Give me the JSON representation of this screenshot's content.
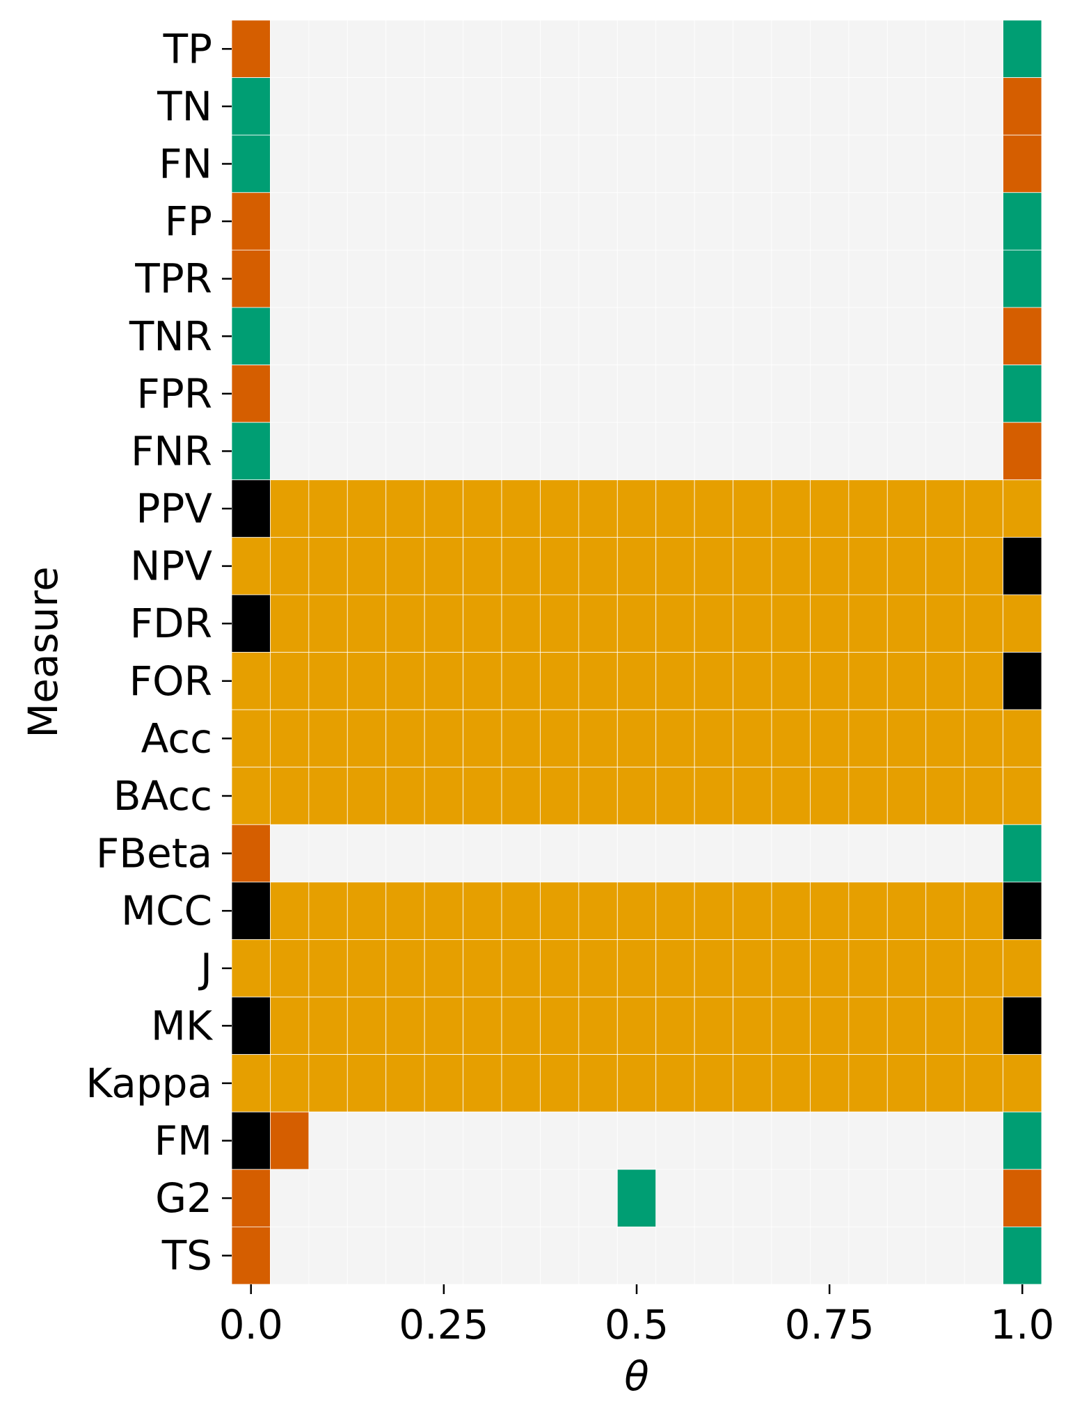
{
  "chart_data": {
    "type": "heatmap",
    "title": "",
    "xlabel": "θ",
    "ylabel": "Measure",
    "xlim": [
      0.0,
      1.0
    ],
    "x_ticks": [
      "0.0",
      "0.25",
      "0.5",
      "0.75",
      "1.0"
    ],
    "x_tick_values": [
      0.0,
      0.25,
      0.5,
      0.75,
      1.0
    ],
    "n_columns": 21,
    "x_values": [
      0.0,
      0.05,
      0.1,
      0.15,
      0.2,
      0.25,
      0.3,
      0.35,
      0.4,
      0.45,
      0.5,
      0.55,
      0.6,
      0.65,
      0.7,
      0.75,
      0.8,
      0.85,
      0.9,
      0.95,
      1.0
    ],
    "rows": [
      "TP",
      "TN",
      "FN",
      "FP",
      "TPR",
      "TNR",
      "FPR",
      "FNR",
      "PPV",
      "NPV",
      "FDR",
      "FOR",
      "Acc",
      "BAcc",
      "FBeta",
      "MCC",
      "J",
      "MK",
      "Kappa",
      "FM",
      "G2",
      "TS"
    ],
    "colors": {
      "E": "#f4f4f4",
      "O": "#d55e00",
      "G": "#009e73",
      "Y": "#e69f00",
      "K": "#000000"
    },
    "grid": false,
    "legend": "none",
    "cells": [
      "OEEEEEEEEEEEEEEEEEEEG",
      "GEEEEEEEEEEEEEEEEEEEO",
      "GEEEEEEEEEEEEEEEEEEEO",
      "OEEEEEEEEEEEEEEEEEEEG",
      "OEEEEEEEEEEEEEEEEEEEG",
      "GEEEEEEEEEEEEEEEEEEEO",
      "OEEEEEEEEEEEEEEEEEEEG",
      "GEEEEEEEEEEEEEEEEEEEO",
      "KYYYYYYYYYYYYYYYYYYYY",
      "YYYYYYYYYYYYYYYYYYYYK",
      "KYYYYYYYYYYYYYYYYYYYY",
      "YYYYYYYYYYYYYYYYYYYYK",
      "YYYYYYYYYYYYYYYYYYYYY",
      "YYYYYYYYYYYYYYYYYYYYY",
      "OEEEEEEEEEEEEEEEEEEEG",
      "KYYYYYYYYYYYYYYYYYYYK",
      "YYYYYYYYYYYYYYYYYYYYY",
      "KYYYYYYYYYYYYYYYYYYYK",
      "YYYYYYYYYYYYYYYYYYYYY",
      "KOEEEEEEEEEEEEEEEEEEG",
      "OEEEEEEEEEGEEEEEEEEEO",
      "OEEEEEEEEEEEEEEEEEEEG"
    ]
  }
}
